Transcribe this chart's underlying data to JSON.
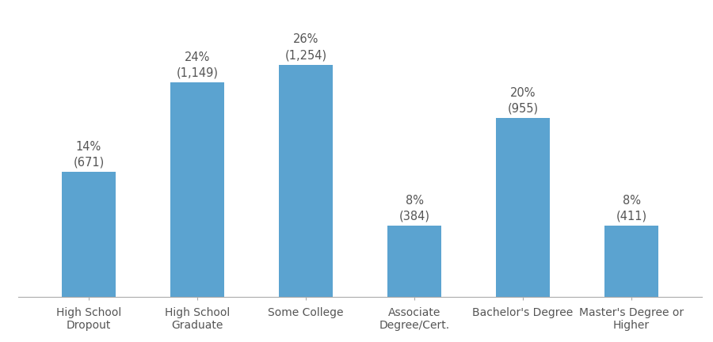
{
  "categories": [
    "High School\nDropout",
    "High School\nGraduate",
    "Some College",
    "Associate\nDegree/Cert.",
    "Bachelor's Degree",
    "Master's Degree or\nHigher"
  ],
  "values": [
    14,
    24,
    26,
    8,
    20,
    8
  ],
  "labels_pct": [
    "14%",
    "24%",
    "26%",
    "8%",
    "20%",
    "8%"
  ],
  "labels_num": [
    "(671)",
    "(1,149)",
    "(1,254)",
    "(384)",
    "(955)",
    "(411)"
  ],
  "bar_color": "#5BA3D0",
  "background_color": "#ffffff",
  "ylim": [
    0,
    32
  ],
  "bar_width": 0.5,
  "label_fontsize": 10.5,
  "tick_fontsize": 10,
  "label_color": "#555555"
}
